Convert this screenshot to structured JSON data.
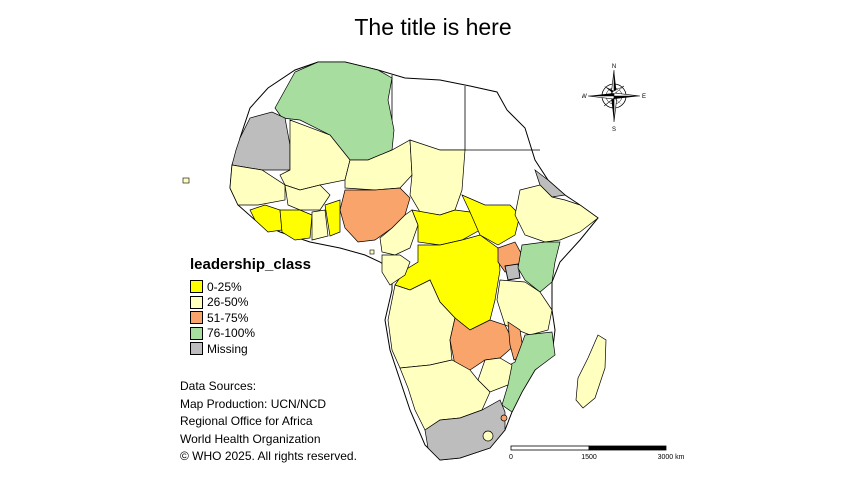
{
  "title": "The title is here",
  "legend": {
    "title": "leadership_class",
    "items": [
      {
        "label": "0-25%",
        "color": "#ffff00"
      },
      {
        "label": "26-50%",
        "color": "#ffffc0"
      },
      {
        "label": "51-75%",
        "color": "#f9a46b"
      },
      {
        "label": "76-100%",
        "color": "#a8dda0"
      },
      {
        "label": "Missing",
        "color": "#bdbdbd"
      }
    ]
  },
  "colors": {
    "not_in_region": "#ffffff",
    "border": "#000000",
    "inner_border": "#888888"
  },
  "sources": [
    "Data Sources:",
    "Map Production: UCN/NCD",
    "Regional Office for Africa",
    "World Health Organization",
    "© WHO 2025. All rights reserved."
  ],
  "compass": {
    "n": "N",
    "s": "S",
    "e": "E",
    "w": "W"
  },
  "scalebar": {
    "labels": [
      "0",
      "1500",
      "3000 km"
    ]
  }
}
